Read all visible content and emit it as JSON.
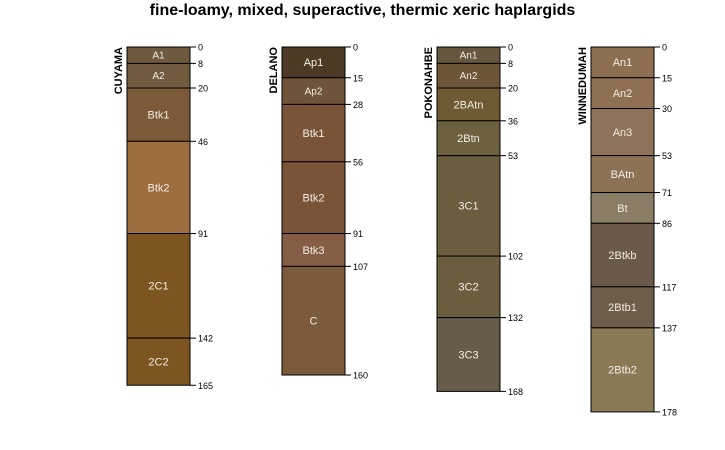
{
  "title": "fine-loamy, mixed, superactive, thermic xeric haplargids",
  "chart_data": {
    "type": "soil-profile",
    "depth_units": "cm",
    "profiles": [
      {
        "name": "CUYAMA",
        "horizons": [
          {
            "name": "A1",
            "top": 0,
            "bottom": 8,
            "color": "#6e5a3e"
          },
          {
            "name": "A2",
            "top": 8,
            "bottom": 20,
            "color": "#715a3e"
          },
          {
            "name": "Btk1",
            "top": 20,
            "bottom": 46,
            "color": "#7a5a38"
          },
          {
            "name": "Btk2",
            "top": 46,
            "bottom": 91,
            "color": "#9d6e3e"
          },
          {
            "name": "2C1",
            "top": 91,
            "bottom": 142,
            "color": "#7c5521"
          },
          {
            "name": "2C2",
            "top": 142,
            "bottom": 165,
            "color": "#7c5521"
          }
        ],
        "depth_labels": [
          "0",
          "8",
          "20",
          "46",
          "91",
          "142",
          "165"
        ]
      },
      {
        "name": "DELANO",
        "horizons": [
          {
            "name": "Ap1",
            "top": 0,
            "bottom": 15,
            "color": "#4c3a25"
          },
          {
            "name": "Ap2",
            "top": 15,
            "bottom": 28,
            "color": "#6f5439"
          },
          {
            "name": "Btk1",
            "top": 28,
            "bottom": 56,
            "color": "#7a5438"
          },
          {
            "name": "Btk2",
            "top": 56,
            "bottom": 91,
            "color": "#7a5438"
          },
          {
            "name": "Btk3",
            "top": 91,
            "bottom": 107,
            "color": "#855e45"
          },
          {
            "name": "C",
            "top": 107,
            "bottom": 160,
            "color": "#7c5a3c"
          }
        ],
        "depth_labels": [
          "0",
          "15",
          "28",
          "56",
          "91",
          "107",
          "160"
        ]
      },
      {
        "name": "POKONAHBE",
        "horizons": [
          {
            "name": "An1",
            "top": 0,
            "bottom": 8,
            "color": "#66573f"
          },
          {
            "name": "An2",
            "top": 8,
            "bottom": 20,
            "color": "#6d5637"
          },
          {
            "name": "2BAtn",
            "top": 20,
            "bottom": 36,
            "color": "#6e5a33"
          },
          {
            "name": "2Btn",
            "top": 36,
            "bottom": 53,
            "color": "#6c613e"
          },
          {
            "name": "3C1",
            "top": 53,
            "bottom": 102,
            "color": "#6b5e3e"
          },
          {
            "name": "3C2",
            "top": 102,
            "bottom": 132,
            "color": "#6b5e3e"
          },
          {
            "name": "3C3",
            "top": 132,
            "bottom": 168,
            "color": "#675c4a"
          }
        ],
        "depth_labels": [
          "0",
          "8",
          "20",
          "36",
          "53",
          "102",
          "132",
          "168"
        ]
      },
      {
        "name": "WINNEDUMAH",
        "horizons": [
          {
            "name": "An1",
            "top": 0,
            "bottom": 15,
            "color": "#8e6f51"
          },
          {
            "name": "An2",
            "top": 15,
            "bottom": 30,
            "color": "#8f7053"
          },
          {
            "name": "An3",
            "top": 30,
            "bottom": 53,
            "color": "#8e725a"
          },
          {
            "name": "BAtn",
            "top": 53,
            "bottom": 71,
            "color": "#8e7256"
          },
          {
            "name": "Bt",
            "top": 71,
            "bottom": 86,
            "color": "#8a7d66"
          },
          {
            "name": "2Btkb",
            "top": 86,
            "bottom": 117,
            "color": "#6b5a4a"
          },
          {
            "name": "2Btb1",
            "top": 117,
            "bottom": 137,
            "color": "#6d5d4b"
          },
          {
            "name": "2Btb2",
            "top": 137,
            "bottom": 178,
            "color": "#8a7b56"
          }
        ],
        "depth_labels": [
          "0",
          "15",
          "30",
          "53",
          "71",
          "86",
          "117",
          "137",
          "178"
        ]
      }
    ]
  }
}
